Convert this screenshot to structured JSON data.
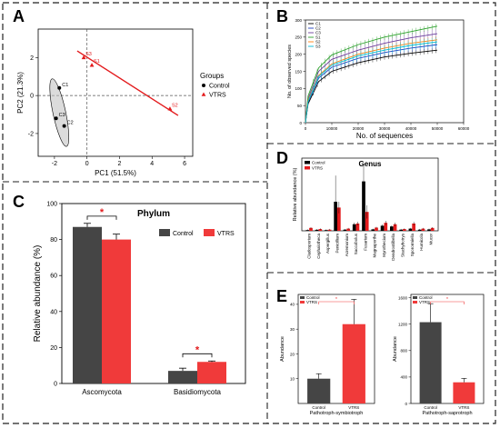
{
  "panels": {
    "A": {
      "letter": "A",
      "xlabel": "PC1 (51.5%)",
      "ylabel": "PC2 (21.3%)",
      "xticks": [
        "-2",
        "0",
        "2",
        "4",
        "6"
      ],
      "yticks": [
        "2",
        "0",
        "-2"
      ],
      "legend": {
        "title": "Groups",
        "items": [
          "Control",
          "VTRS"
        ]
      },
      "colors": {
        "control": "#000000",
        "vtrs": "#e31a1c",
        "ellipse": "#bdbdbd"
      },
      "chart_data": {
        "type": "scatter",
        "xlim": [
          -3,
          6.5
        ],
        "ylim": [
          -3.2,
          3.5
        ],
        "series": [
          {
            "name": "Control",
            "points": [
              {
                "label": "C1",
                "x": -1.7,
                "y": 0.4
              },
              {
                "label": "C3",
                "x": -1.9,
                "y": -1.2
              },
              {
                "label": "C2",
                "x": -1.4,
                "y": -1.6
              }
            ]
          },
          {
            "name": "VTRS",
            "points": [
              {
                "label": "S3",
                "x": -0.2,
                "y": 2.0
              },
              {
                "label": "S1",
                "x": 0.3,
                "y": 1.6
              },
              {
                "label": "S2",
                "x": 5.1,
                "y": -0.7
              }
            ]
          }
        ]
      }
    },
    "B": {
      "letter": "B",
      "xlabel": "No. of sequences",
      "ylabel": "No. of observed species",
      "xticks": [
        "0",
        "10000",
        "20000",
        "30000",
        "40000",
        "50000",
        "60000"
      ],
      "yticks": [
        "0",
        "50",
        "100",
        "150",
        "200",
        "250",
        "300"
      ],
      "legend": [
        "C1",
        "C2",
        "C3",
        "S1",
        "S2",
        "S3"
      ],
      "colors": [
        "#000000",
        "#1f3fbf",
        "#6a3d9a",
        "#2ca02c",
        "#ff7f0e",
        "#00bcd4"
      ],
      "chart_data": {
        "type": "line",
        "xlim": [
          0,
          60000
        ],
        "ylim": [
          0,
          300
        ],
        "x": [
          1000,
          5000,
          10000,
          20000,
          30000,
          40000,
          50000
        ],
        "series": [
          {
            "name": "C1",
            "values": [
              55,
              120,
              150,
              175,
              192,
              203,
              212
            ]
          },
          {
            "name": "C2",
            "values": [
              60,
              130,
              162,
              188,
              205,
              218,
              228
            ]
          },
          {
            "name": "C3",
            "values": [
              70,
              150,
              185,
              212,
              232,
              248,
              260
            ]
          },
          {
            "name": "S1",
            "values": [
              78,
              160,
              198,
              228,
              250,
              266,
              282
            ]
          },
          {
            "name": "S2",
            "values": [
              65,
              138,
              172,
              200,
              218,
              232,
              242
            ]
          },
          {
            "name": "S3",
            "values": [
              62,
              135,
              168,
              195,
              212,
              226,
              236
            ]
          }
        ]
      }
    },
    "C": {
      "letter": "C",
      "title": "Phylum",
      "ylabel": "Relative abundance (%)",
      "yticks": [
        "0",
        "20",
        "40",
        "60",
        "80",
        "100"
      ],
      "legend": [
        "Control",
        "VTRS"
      ],
      "significance": "*",
      "colors": {
        "control": "#454545",
        "vtrs": "#f03a3a"
      },
      "chart_data": {
        "type": "bar",
        "categories": [
          "Ascomycota",
          "Basidiomycota"
        ],
        "ylim": [
          0,
          100
        ],
        "series": [
          {
            "name": "Control",
            "values": [
              87,
              7
            ],
            "errors": [
              2,
              1.5
            ]
          },
          {
            "name": "VTRS",
            "values": [
              80,
              12
            ],
            "errors": [
              3,
              0.5
            ]
          }
        ]
      }
    },
    "D": {
      "letter": "D",
      "title": "Genus",
      "ylabel": "Relative abundance (%)",
      "legend": [
        "Control",
        "VTRS"
      ],
      "colors": {
        "control": "#000000",
        "vtrs": "#e31a1c"
      },
      "chart_data": {
        "type": "bar",
        "categories": [
          "Cladosporium",
          "Cephalotheca",
          "Aspergillus",
          "Penicillium",
          "Acremonium",
          "Saccobolus",
          "Fusarium",
          "Magnaporthe",
          "Myrothecium",
          "Dendrostilbella",
          "Stachybotrys",
          "Sporormiella",
          "Humicola",
          "Mucor"
        ],
        "ylim": [
          0,
          5
        ],
        "series": [
          {
            "name": "Control",
            "values": [
              0.05,
              0.07,
              0.05,
              2.0,
              0.08,
              0.45,
              3.4,
              0.1,
              0.35,
              0.3,
              0.08,
              0.15,
              0.08,
              0.1
            ]
          },
          {
            "name": "VTRS",
            "values": [
              0.2,
              0.12,
              0.08,
              1.6,
              0.15,
              0.5,
              1.3,
              0.22,
              0.55,
              0.45,
              0.12,
              0.5,
              0.15,
              0.2
            ]
          }
        ]
      }
    },
    "E": {
      "letter": "E",
      "legend": [
        "Control",
        "VTRS"
      ],
      "significance": "*",
      "colors": {
        "control": "#454545",
        "vtrs": "#f03a3a"
      },
      "chart_data": [
        {
          "type": "bar",
          "xlabel": "Pathotroph-symbiotroph",
          "ylabel": "Abundance",
          "categories": [
            "Control",
            "VTRS"
          ],
          "yticks": [
            "10",
            "20",
            "30",
            "40"
          ],
          "ylim": [
            0,
            44
          ],
          "values": [
            10,
            32
          ],
          "errors": [
            2,
            10
          ]
        },
        {
          "type": "bar",
          "xlabel": "Pathotroph-saprotroph",
          "ylabel": "Abundance",
          "categories": [
            "Control",
            "VTRS"
          ],
          "yticks": [
            "0",
            "400",
            "800",
            "1200",
            "1600"
          ],
          "ylim": [
            0,
            1650
          ],
          "values": [
            1230,
            320
          ],
          "errors": [
            280,
            60
          ]
        }
      ]
    }
  }
}
